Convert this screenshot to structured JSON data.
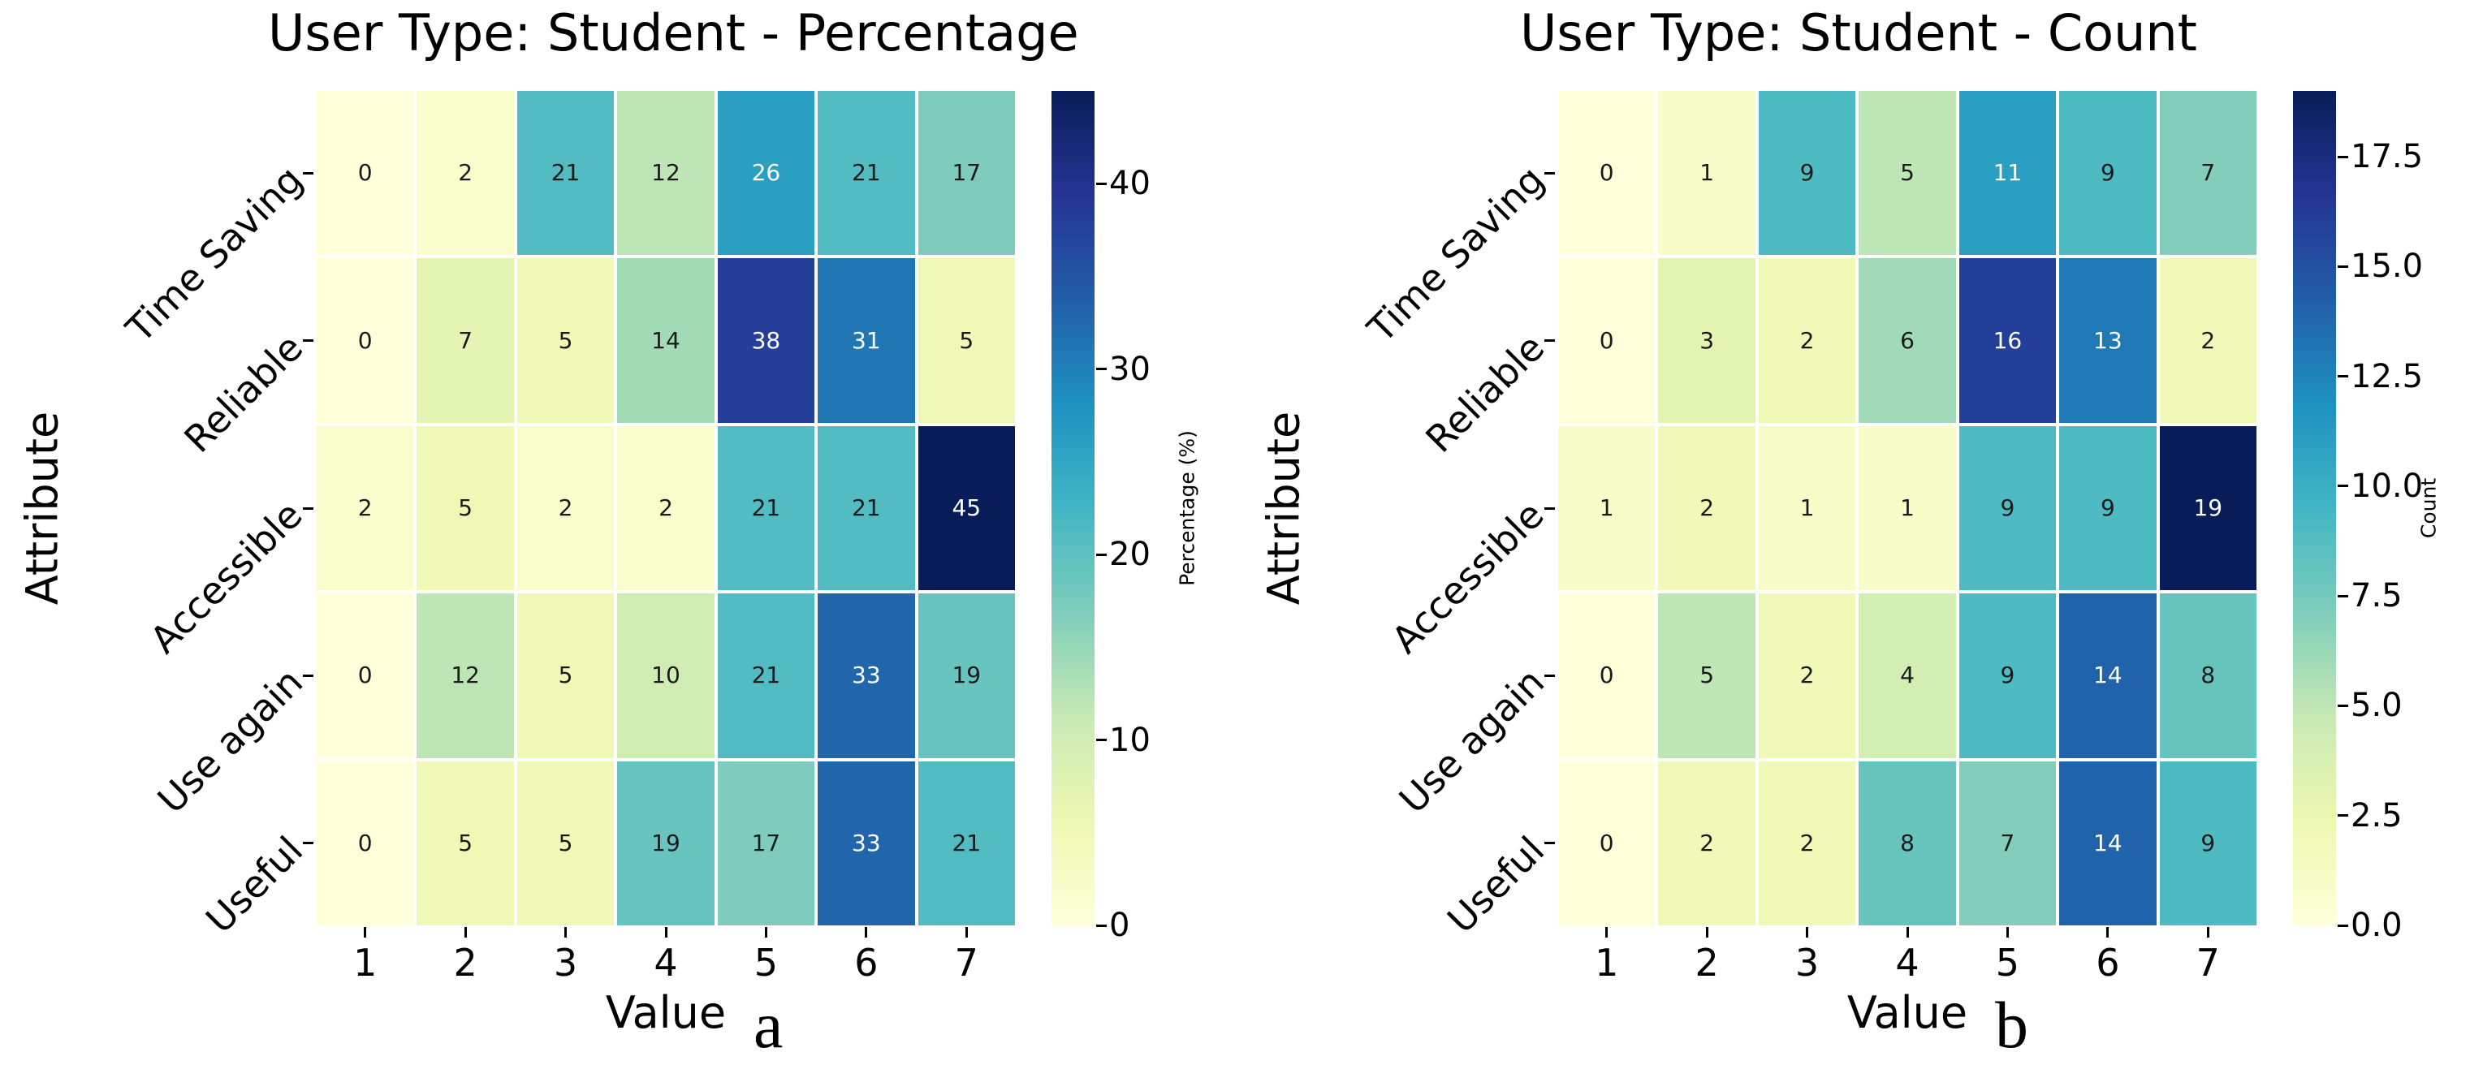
{
  "figure": {
    "background": "#ffffff"
  },
  "colormap": {
    "name": "YlGnBu",
    "stops": [
      "#ffffd9",
      "#edf8b1",
      "#c7e9b4",
      "#7fcdbb",
      "#41b6c4",
      "#1d91c0",
      "#225ea8",
      "#253494",
      "#081d58"
    ],
    "annotation_text_dark": "#1a1a1a",
    "annotation_text_light": "#ffffff",
    "tick_color": "#000000"
  },
  "chart_data": [
    {
      "type": "heatmap",
      "title": "User Type: Student - Percentage",
      "xlabel": "Value",
      "ylabel": "Attribute",
      "panel_letter": "a",
      "rows": [
        "Time Saving",
        "Reliable",
        "Accessible",
        "Use again",
        "Useful"
      ],
      "columns": [
        "1",
        "2",
        "3",
        "4",
        "5",
        "6",
        "7"
      ],
      "values": [
        [
          0,
          2,
          21,
          12,
          26,
          21,
          17
        ],
        [
          0,
          7,
          5,
          14,
          38,
          31,
          5
        ],
        [
          2,
          5,
          2,
          2,
          21,
          21,
          45
        ],
        [
          0,
          12,
          5,
          10,
          21,
          33,
          19
        ],
        [
          0,
          5,
          5,
          19,
          17,
          33,
          21
        ]
      ],
      "colorbar": {
        "label": "Percentage (%)",
        "vmin": 0,
        "vmax": 45,
        "ticks": [
          {
            "value": 0,
            "label": "0"
          },
          {
            "value": 10,
            "label": "10"
          },
          {
            "value": 20,
            "label": "20"
          },
          {
            "value": 30,
            "label": "30"
          },
          {
            "value": 40,
            "label": "40"
          }
        ]
      }
    },
    {
      "type": "heatmap",
      "title": "User Type: Student - Count",
      "xlabel": "Value",
      "ylabel": "Attribute",
      "panel_letter": "b",
      "rows": [
        "Time Saving",
        "Reliable",
        "Accessible",
        "Use again",
        "Useful"
      ],
      "columns": [
        "1",
        "2",
        "3",
        "4",
        "5",
        "6",
        "7"
      ],
      "values": [
        [
          0,
          1,
          9,
          5,
          11,
          9,
          7
        ],
        [
          0,
          3,
          2,
          6,
          16,
          13,
          2
        ],
        [
          1,
          2,
          1,
          1,
          9,
          9,
          19
        ],
        [
          0,
          5,
          2,
          4,
          9,
          14,
          8
        ],
        [
          0,
          2,
          2,
          8,
          7,
          14,
          9
        ]
      ],
      "colorbar": {
        "label": "Count",
        "vmin": 0,
        "vmax": 19,
        "ticks": [
          {
            "value": 0,
            "label": "0.0"
          },
          {
            "value": 2.5,
            "label": "2.5"
          },
          {
            "value": 5,
            "label": "5.0"
          },
          {
            "value": 7.5,
            "label": "7.5"
          },
          {
            "value": 10,
            "label": "10.0"
          },
          {
            "value": 12.5,
            "label": "12.5"
          },
          {
            "value": 15,
            "label": "15.0"
          },
          {
            "value": 17.5,
            "label": "17.5"
          }
        ]
      }
    }
  ]
}
